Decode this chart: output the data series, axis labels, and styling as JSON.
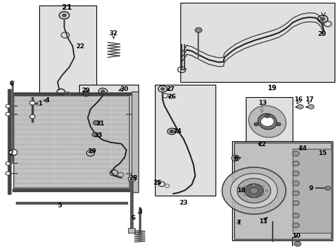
{
  "bg": "#ffffff",
  "box_fill": "#e0e0e0",
  "box_edge": "#000000",
  "line_col": "#1a1a1a",
  "gray_light": "#aaaaaa",
  "gray_med": "#666666",
  "gray_dark": "#333333",
  "boxes": {
    "b21": [
      0.115,
      0.02,
      0.285,
      0.39
    ],
    "b29": [
      0.235,
      0.34,
      0.41,
      0.72
    ],
    "b2427": [
      0.46,
      0.34,
      0.64,
      0.79
    ],
    "b20": [
      0.535,
      0.01,
      0.995,
      0.33
    ],
    "b13": [
      0.73,
      0.39,
      0.87,
      0.57
    ],
    "bcomp": [
      0.69,
      0.57,
      0.99,
      0.97
    ]
  },
  "labels": {
    "21": [
      0.197,
      0.028,
      8
    ],
    "22": [
      0.238,
      0.185,
      6.5
    ],
    "32": [
      0.337,
      0.132,
      6.5
    ],
    "6a": [
      0.032,
      0.338,
      6.5
    ],
    "1": [
      0.118,
      0.418,
      6.5
    ],
    "4": [
      0.14,
      0.405,
      6.5
    ],
    "2": [
      0.032,
      0.618,
      6.5
    ],
    "5": [
      0.175,
      0.83,
      6.5
    ],
    "28": [
      0.395,
      0.72,
      6.5
    ],
    "3": [
      0.415,
      0.855,
      6.5
    ],
    "6b": [
      0.395,
      0.88,
      6.5
    ],
    "29a": [
      0.255,
      0.365,
      6.5
    ],
    "30": [
      0.368,
      0.358,
      6.5
    ],
    "31": [
      0.298,
      0.498,
      6.5
    ],
    "33": [
      0.292,
      0.545,
      6.5
    ],
    "29b": [
      0.272,
      0.61,
      6.5
    ],
    "27": [
      0.506,
      0.358,
      6.5
    ],
    "26": [
      0.51,
      0.39,
      6.5
    ],
    "24": [
      0.526,
      0.53,
      6.5
    ],
    "25": [
      0.468,
      0.738,
      6.5
    ],
    "23": [
      0.545,
      0.82,
      6.5
    ],
    "20": [
      0.958,
      0.135,
      6.5
    ],
    "19": [
      0.81,
      0.355,
      7
    ],
    "13": [
      0.78,
      0.415,
      6.5
    ],
    "12": [
      0.778,
      0.582,
      6.5
    ],
    "14": [
      0.9,
      0.598,
      6.5
    ],
    "15": [
      0.958,
      0.618,
      6.5
    ],
    "16": [
      0.888,
      0.4,
      6.5
    ],
    "17": [
      0.92,
      0.4,
      6.5
    ],
    "8": [
      0.702,
      0.64,
      6.5
    ],
    "18": [
      0.716,
      0.77,
      6.5
    ],
    "7": [
      0.71,
      0.9,
      6.5
    ],
    "11": [
      0.782,
      0.895,
      6.5
    ],
    "9": [
      0.925,
      0.76,
      6.5
    ],
    "10": [
      0.88,
      0.952,
      6.5
    ]
  }
}
